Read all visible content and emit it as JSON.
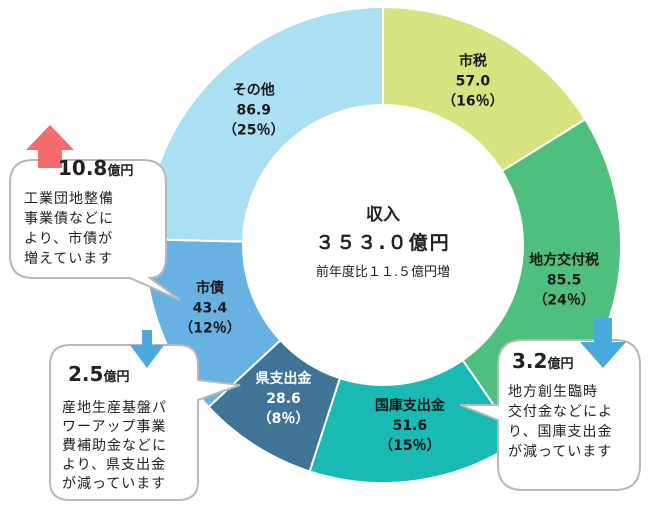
{
  "chart_data": {
    "type": "donut",
    "center": {
      "title": "収入",
      "total": "３５３.０億円",
      "sub": "前年度比１１.５億円増"
    },
    "slices": [
      {
        "name": "市税",
        "value": 57.0,
        "value_label": "57.0",
        "pct_label": "（16％）",
        "color": "#d6e37f"
      },
      {
        "name": "地方交付税",
        "value": 85.5,
        "value_label": "85.5",
        "pct_label": "（24％）",
        "color": "#4fbf7e"
      },
      {
        "name": "国庫支出金",
        "value": 51.6,
        "value_label": "51.6",
        "pct_label": "（15％）",
        "color": "#19b9b4"
      },
      {
        "name": "県支出金",
        "value": 28.6,
        "value_label": "28.6",
        "pct_label": "（8％）",
        "color": "#3f7497"
      },
      {
        "name": "市債",
        "value": 43.4,
        "value_label": "43.4",
        "pct_label": "（12％）",
        "color": "#67b2e3"
      },
      {
        "name": "その他",
        "value": 86.9,
        "value_label": "86.9",
        "pct_label": "（25％）",
        "color": "#abdff4"
      }
    ]
  },
  "callouts": [
    {
      "amount": "10.8",
      "unit": "億円",
      "direction": "up",
      "lines": [
        "工業団地整備",
        "事業債などに",
        "より、市債が",
        "増えています"
      ]
    },
    {
      "amount": "2.5",
      "unit": "億円",
      "direction": "down",
      "lines": [
        "産地生産基盤パ",
        "ワーアップ事業",
        "費補助金などに",
        "より、県支出金",
        "が減っています"
      ]
    },
    {
      "amount": "3.2",
      "unit": "億円",
      "direction": "down",
      "lines": [
        "地方創生臨時",
        "交付金などによ",
        "り、国庫支出金",
        "が減っています"
      ]
    }
  ],
  "colors": {
    "arrow_up": "#f36b6b",
    "arrow_down": "#4aa9dd"
  }
}
